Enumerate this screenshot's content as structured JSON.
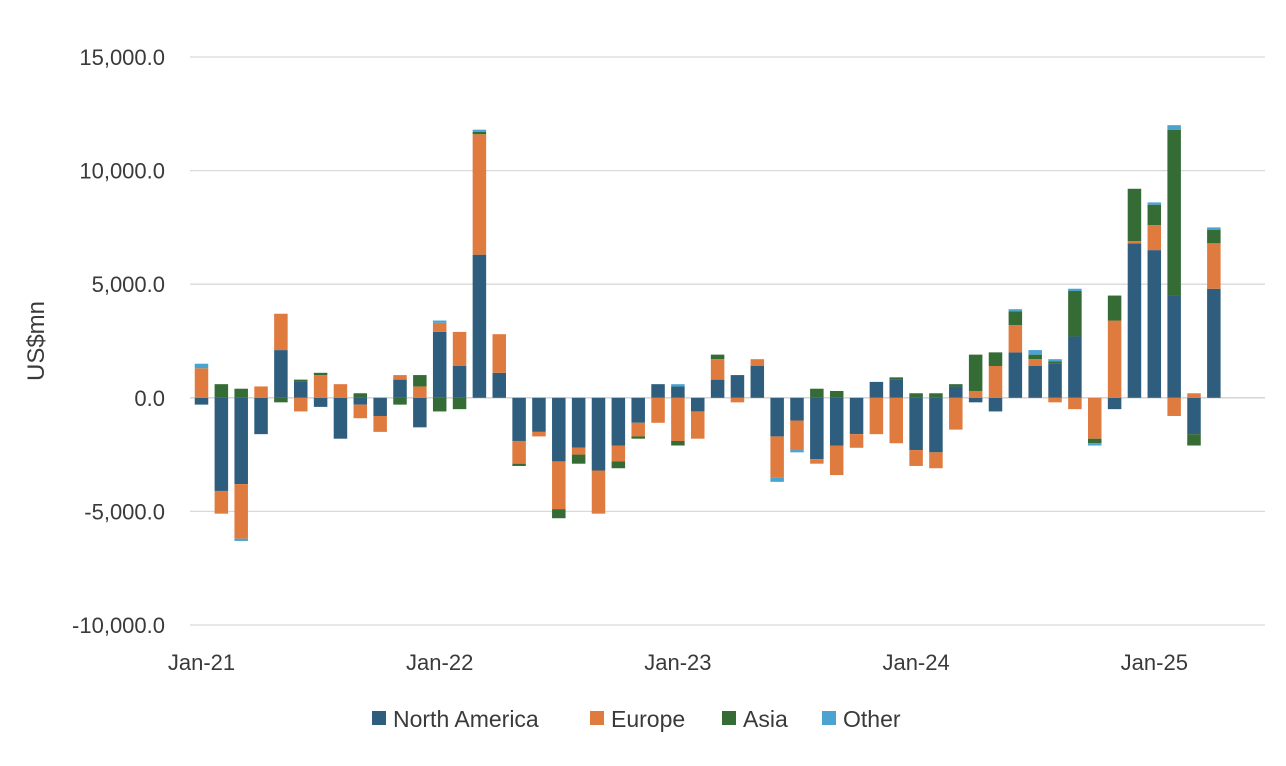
{
  "chart_data": {
    "type": "bar",
    "stacked": true,
    "title": "",
    "xlabel": "",
    "ylabel": "US$mn",
    "ylim": [
      -10000,
      15000
    ],
    "yticks": [
      -10000,
      -5000,
      0,
      5000,
      10000,
      15000
    ],
    "ytick_labels": [
      "-10,000.0",
      "-5,000.0",
      "0.0",
      "5,000.0",
      "10,000.0",
      "15,000.0"
    ],
    "xtick_labels": [
      {
        "label": "Jan-21",
        "index": 0
      },
      {
        "label": "Jan-22",
        "index": 12
      },
      {
        "label": "Jan-23",
        "index": 24
      },
      {
        "label": "Jan-24",
        "index": 36
      },
      {
        "label": "Jan-25",
        "index": 48
      }
    ],
    "grid": true,
    "legend_position": "bottom",
    "categories": [
      "Jan-21",
      "Feb-21",
      "Mar-21",
      "Apr-21",
      "May-21",
      "Jun-21",
      "Jul-21",
      "Aug-21",
      "Sep-21",
      "Oct-21",
      "Nov-21",
      "Dec-21",
      "Jan-22",
      "Feb-22",
      "Mar-22",
      "Apr-22",
      "May-22",
      "Jun-22",
      "Jul-22",
      "Aug-22",
      "Sep-22",
      "Oct-22",
      "Nov-22",
      "Dec-22",
      "Jan-23",
      "Feb-23",
      "Mar-23",
      "Apr-23",
      "May-23",
      "Jun-23",
      "Jul-23",
      "Aug-23",
      "Sep-23",
      "Oct-23",
      "Nov-23",
      "Dec-23",
      "Jan-24",
      "Feb-24",
      "Mar-24",
      "Apr-24",
      "May-24",
      "Jun-24",
      "Jul-24",
      "Aug-24",
      "Sep-24",
      "Oct-24",
      "Nov-24",
      "Dec-24",
      "Jan-25",
      "Feb-25",
      "Mar-25",
      "Apr-25",
      "May-25",
      "Jun-25"
    ],
    "series": [
      {
        "name": "North America",
        "color": "#2e5d7d",
        "values": [
          -300,
          -4100,
          -3800,
          -1600,
          2100,
          700,
          -400,
          -1800,
          -300,
          -800,
          800,
          -1300,
          2900,
          1400,
          6300,
          1100,
          -1900,
          -1500,
          -2800,
          -2200,
          -3200,
          -2100,
          -1100,
          600,
          500,
          -600,
          800,
          1000,
          1400,
          -1700,
          -1000,
          -2700,
          -2100,
          -1600,
          700,
          800,
          -2300,
          -2400,
          500,
          -200,
          -600,
          2000,
          1400,
          1500,
          2700,
          0,
          -500,
          6800,
          6500,
          4500,
          -1600,
          4800,
          0,
          0
        ]
      },
      {
        "name": "Europe",
        "color": "#e07b3f",
        "values": [
          1300,
          -1000,
          -2400,
          500,
          1600,
          -600,
          1000,
          600,
          -600,
          -700,
          200,
          500,
          400,
          1500,
          5300,
          1700,
          -1000,
          -200,
          -2100,
          -300,
          -1900,
          -700,
          -600,
          -1100,
          -1900,
          -1200,
          900,
          -200,
          300,
          -1800,
          -1300,
          -200,
          -1300,
          -600,
          -1600,
          -2000,
          -700,
          -700,
          -1400,
          300,
          1400,
          1200,
          300,
          -200,
          -500,
          -1800,
          3400,
          100,
          1100,
          -800,
          200,
          2000,
          0,
          0
        ]
      },
      {
        "name": "Asia",
        "color": "#356b34",
        "values": [
          0,
          600,
          400,
          0,
          -200,
          100,
          100,
          0,
          200,
          0,
          -300,
          500,
          -600,
          -500,
          100,
          0,
          -100,
          0,
          -400,
          -400,
          0,
          -300,
          -100,
          0,
          -200,
          0,
          200,
          0,
          0,
          0,
          0,
          400,
          300,
          0,
          0,
          100,
          200,
          200,
          100,
          1600,
          600,
          600,
          200,
          100,
          2000,
          -200,
          1100,
          2300,
          900,
          7300,
          -500,
          600,
          0,
          0
        ]
      },
      {
        "name": "Other",
        "color": "#4ba3d1",
        "values": [
          200,
          0,
          -100,
          0,
          0,
          0,
          0,
          0,
          0,
          0,
          0,
          0,
          100,
          0,
          100,
          0,
          0,
          0,
          0,
          0,
          0,
          0,
          0,
          0,
          100,
          0,
          0,
          0,
          0,
          -200,
          -100,
          0,
          0,
          0,
          0,
          0,
          0,
          0,
          0,
          0,
          0,
          100,
          200,
          100,
          100,
          -100,
          0,
          0,
          100,
          200,
          0,
          100,
          0,
          0
        ]
      }
    ]
  }
}
